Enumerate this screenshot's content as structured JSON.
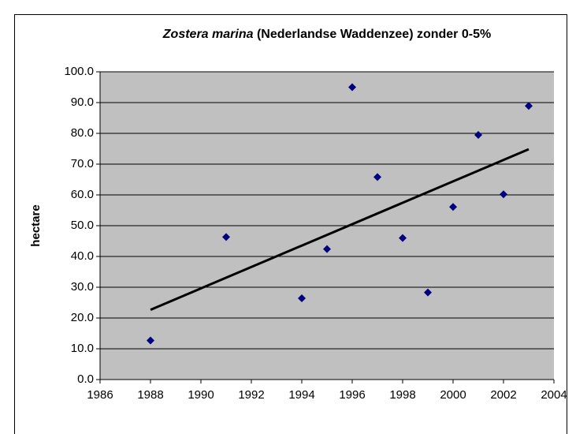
{
  "chart_data": {
    "type": "scatter",
    "title": [
      "Zostera marina",
      "(Nederlandse Waddenzee) zonder 0-5%"
    ],
    "ylabel": "hectare",
    "x": [
      1988,
      1991,
      1994,
      1995,
      1996,
      1997,
      1998,
      1999,
      2000,
      2001,
      2002,
      2003
    ],
    "series": [
      {
        "color": "#000080",
        "values": [
          12.7,
          46.3,
          26.4,
          42.4,
          95.0,
          65.8,
          46.0,
          28.3,
          56.1,
          79.5,
          60.2,
          88.9
        ]
      }
    ],
    "trendline": "linear",
    "xlim": [
      1986,
      2004
    ],
    "xticks": [
      1986,
      1988,
      1990,
      1992,
      1994,
      1996,
      1998,
      2000,
      2002,
      2004
    ],
    "ylim": [
      0,
      100
    ],
    "yticks": [
      {
        "value": 0,
        "label": "0.0"
      },
      {
        "value": 10,
        "label": "10.0"
      },
      {
        "value": 20,
        "label": "20.0"
      },
      {
        "value": 30,
        "label": "30.0"
      },
      {
        "value": 40,
        "label": "40.0"
      },
      {
        "value": 50,
        "label": "50.0"
      },
      {
        "value": 60,
        "label": "60.0"
      },
      {
        "value": 70,
        "label": "70.0"
      },
      {
        "value": 80,
        "label": "80.0"
      },
      {
        "value": 90,
        "label": "90.0"
      },
      {
        "value": 100,
        "label": "100.0"
      }
    ],
    "grid": true
  }
}
